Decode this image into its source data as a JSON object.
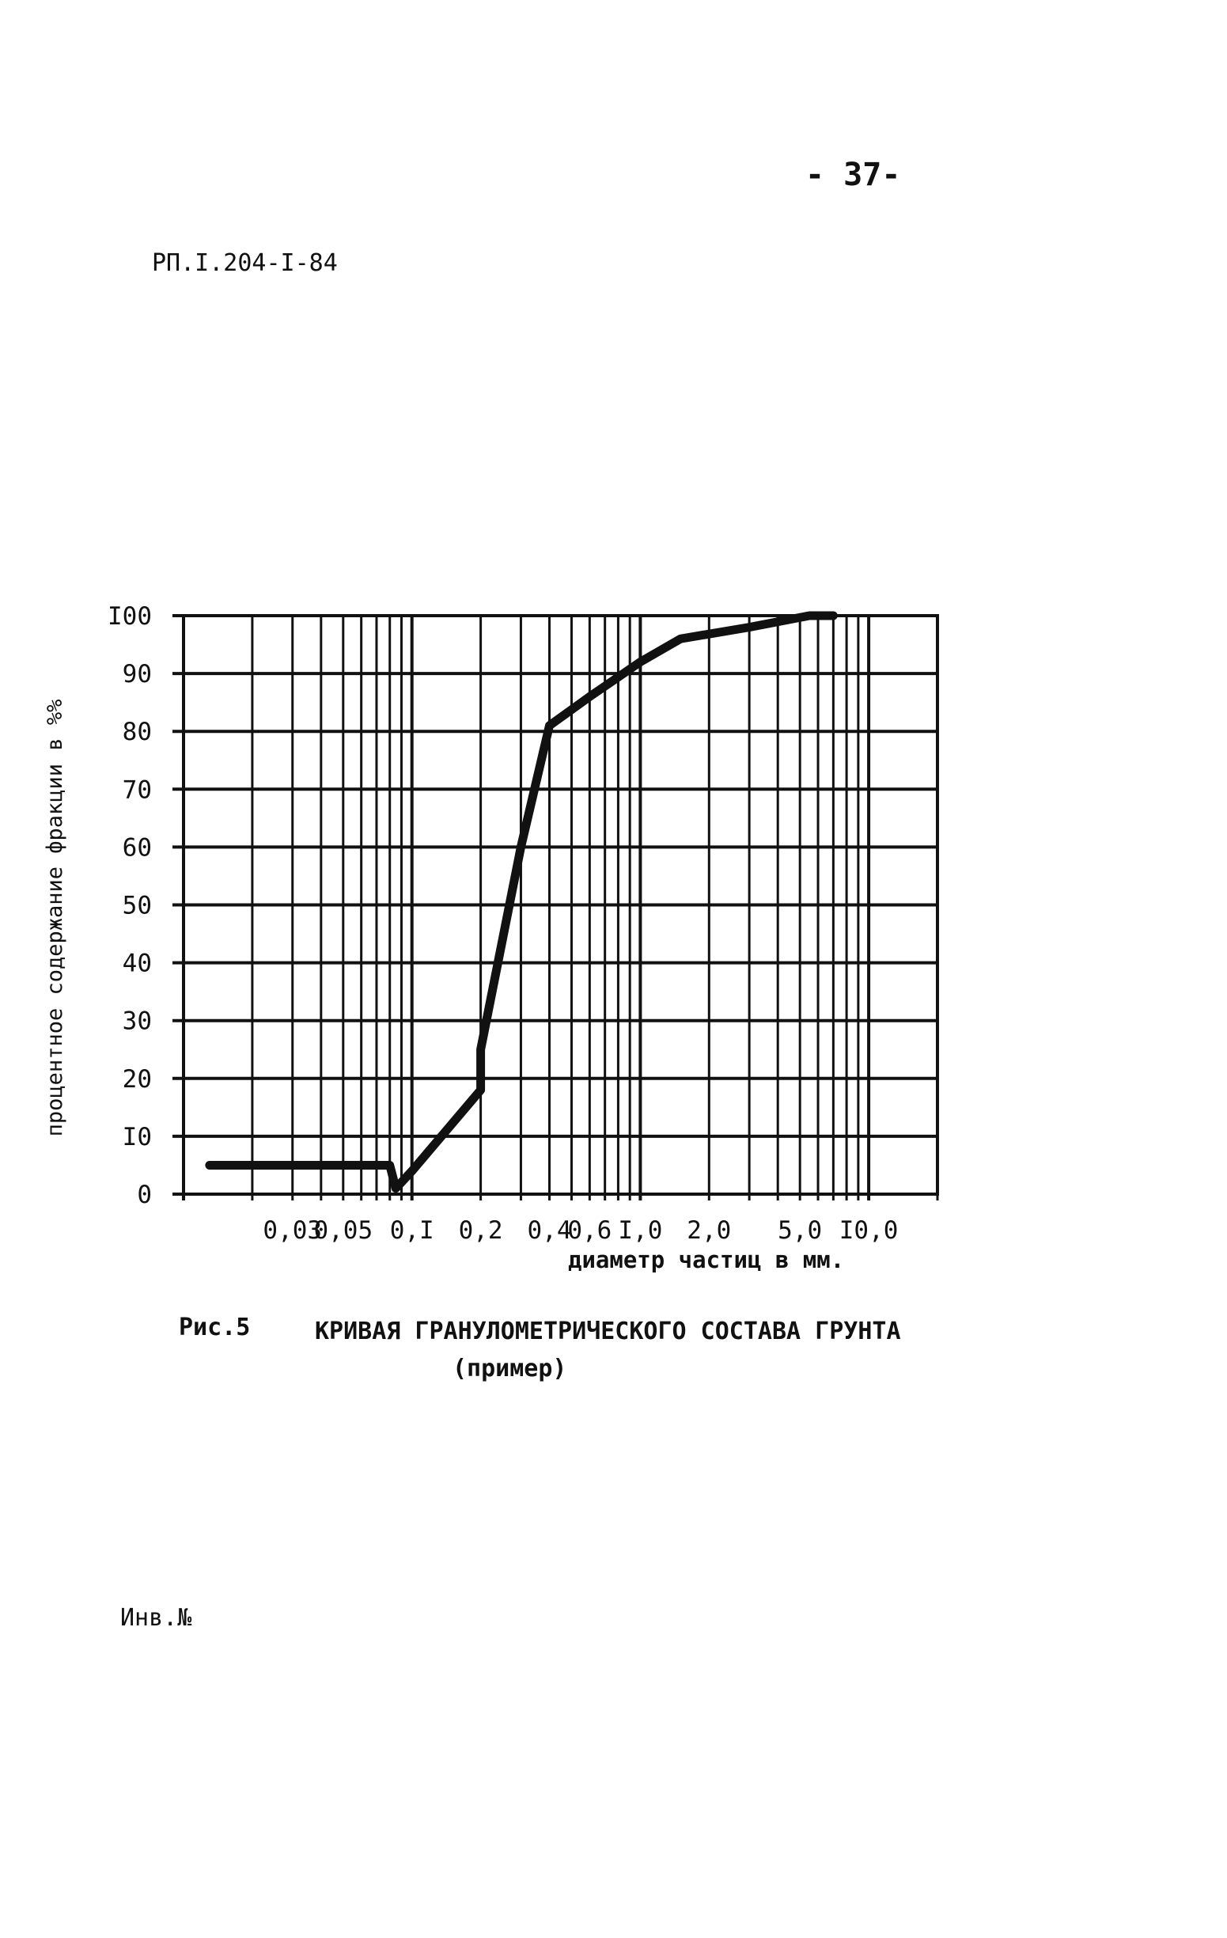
{
  "page": {
    "page_number": "- 37-",
    "doc_code": "РП.I.204-I-84",
    "inv_label": "Инв.№"
  },
  "figure": {
    "label": "Рис.5",
    "title": "КРИВАЯ ГРАНУЛОМЕТРИЧЕСКОГО СОСТАВА ГРУНТА",
    "subtitle": "(пример)"
  },
  "chart_data": {
    "type": "line",
    "xscale": "log",
    "xlim": [
      0.01,
      20
    ],
    "ylim": [
      0,
      100
    ],
    "grid": true,
    "xlabel": "диаметр частиц в мм.",
    "ylabel": "процентное содержание фракции в %%",
    "x_tick_labels": [
      {
        "value": 0.03,
        "label": "0,03"
      },
      {
        "value": 0.05,
        "label": "0,05"
      },
      {
        "value": 0.1,
        "label": "0,I"
      },
      {
        "value": 0.2,
        "label": "0,2"
      },
      {
        "value": 0.4,
        "label": "0,4"
      },
      {
        "value": 0.6,
        "label": "0,6"
      },
      {
        "value": 1.0,
        "label": "I,0"
      },
      {
        "value": 2.0,
        "label": "2,0"
      },
      {
        "value": 5.0,
        "label": "5,0"
      },
      {
        "value": 10.0,
        "label": "I0,0"
      }
    ],
    "y_tick_labels": [
      "0",
      "I0",
      "20",
      "30",
      "40",
      "50",
      "60",
      "70",
      "80",
      "90",
      "I00"
    ],
    "y_tick_values": [
      0,
      10,
      20,
      30,
      40,
      50,
      60,
      70,
      80,
      90,
      100
    ],
    "series": [
      {
        "x": [
          0.013,
          0.08,
          0.085,
          0.1,
          0.2,
          0.2,
          0.3,
          0.4,
          0.6,
          1.0,
          1.5,
          3.0,
          5.5,
          7.0
        ],
        "y": [
          5,
          5,
          1,
          4,
          18,
          25,
          60,
          81,
          86,
          92,
          96,
          98,
          100,
          100
        ]
      }
    ]
  }
}
